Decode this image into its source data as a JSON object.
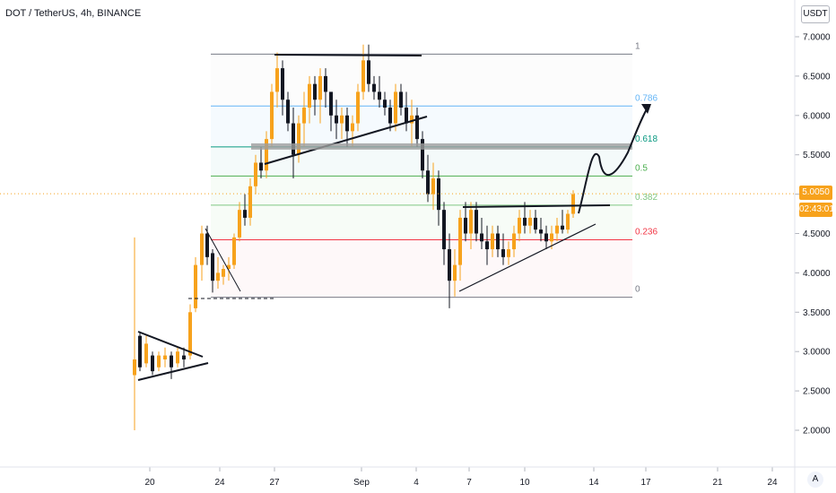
{
  "header": {
    "title": "DOT / TetherUS, 4h, BINANCE"
  },
  "price_scale": {
    "currency": "USDT"
  },
  "last_price": {
    "value": "5.0050",
    "countdown": "02:43:01",
    "color": "#f7a21c"
  },
  "colors": {
    "up": "#f7a21c",
    "down": "#131722",
    "background": "#ffffff",
    "grid_line": "#e0e3eb"
  },
  "fib_levels": [
    {
      "label": "1",
      "price": 6.78,
      "color": "#787b86"
    },
    {
      "label": "0.786",
      "price": 6.12,
      "color": "#64b5f6"
    },
    {
      "label": "0.618",
      "price": 5.6,
      "color": "#089981"
    },
    {
      "label": "0.5",
      "price": 5.23,
      "color": "#4caf50"
    },
    {
      "label": "0.382",
      "price": 4.86,
      "color": "#81c784"
    },
    {
      "label": "0.236",
      "price": 4.42,
      "color": "#f23645"
    },
    {
      "label": "0",
      "price": 3.69,
      "color": "#787b86"
    }
  ],
  "chart_data": {
    "type": "candlestick",
    "title": "DOT / TetherUS, 4h, BINANCE",
    "ylim": [
      1.7,
      7.35
    ],
    "y_ticks": [
      "7.0000",
      "6.5000",
      "6.0000",
      "5.5000",
      "5.0000",
      "4.5000",
      "4.0000",
      "3.5000",
      "3.0000",
      "2.5000",
      "2.0000"
    ],
    "x_ticks": [
      "20",
      "24",
      "27",
      "Sep",
      "4",
      "7",
      "10",
      "14",
      "17",
      "21",
      "24"
    ],
    "series": [
      {
        "name": "DOT/USDT",
        "x_range": [
          "Aug 18",
          "Sep 13"
        ],
        "close_approx": [
          2.85,
          2.9,
          2.95,
          3.0,
          3.2,
          3.9,
          4.5,
          4.2,
          3.85,
          4.2,
          4.6,
          5.0,
          5.5,
          6.5,
          6.2,
          5.9,
          6.3,
          6.0,
          5.8,
          6.4,
          6.7,
          6.3,
          6.1,
          5.8,
          5.0,
          4.5,
          3.8,
          4.8,
          4.6,
          4.4,
          4.5,
          4.8,
          4.6,
          4.5,
          4.7,
          5.0
        ]
      }
    ]
  },
  "ui": {
    "a_button": "A"
  }
}
